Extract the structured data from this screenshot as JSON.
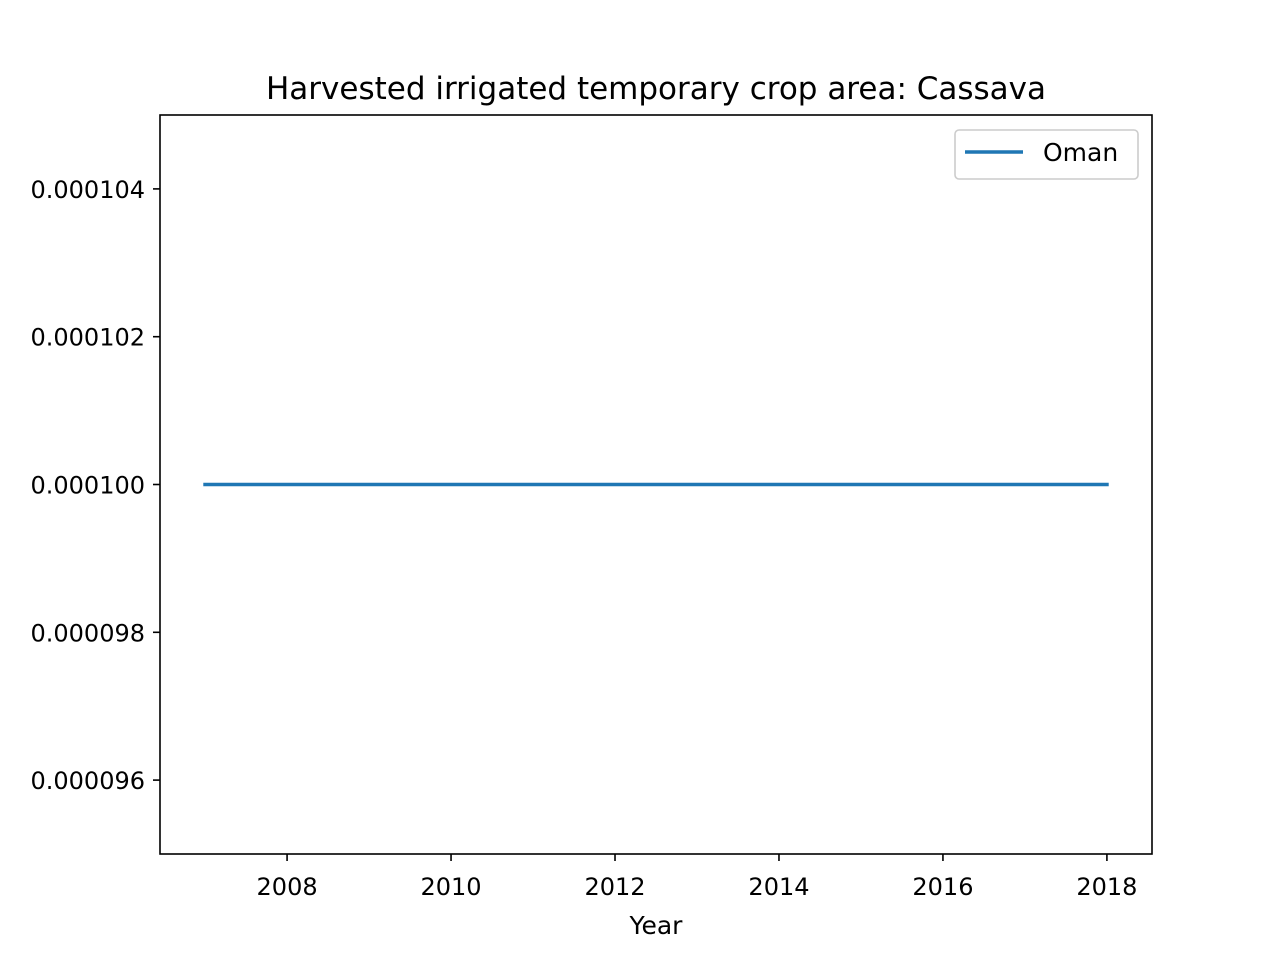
{
  "chart_data": {
    "type": "line",
    "title": "Harvested irrigated temporary crop area: Cassava",
    "xlabel": "Year",
    "ylabel": "",
    "x": [
      2007,
      2008,
      2009,
      2010,
      2011,
      2012,
      2013,
      2014,
      2015,
      2016,
      2017,
      2018
    ],
    "series": [
      {
        "name": "Oman",
        "color": "#1f77b4",
        "values": [
          0.0001,
          0.0001,
          0.0001,
          0.0001,
          0.0001,
          0.0001,
          0.0001,
          0.0001,
          0.0001,
          0.0001,
          0.0001,
          0.0001
        ]
      }
    ],
    "xlim": [
      2006.45,
      2018.55
    ],
    "ylim": [
      9.5e-05,
      0.000105
    ],
    "xticks": [
      2008,
      2010,
      2012,
      2014,
      2016,
      2018
    ],
    "xtick_labels": [
      "2008",
      "2010",
      "2012",
      "2014",
      "2016",
      "2018"
    ],
    "yticks": [
      9.6e-05,
      9.8e-05,
      0.0001,
      0.000102,
      0.000104
    ],
    "ytick_labels": [
      "0.000096",
      "0.000098",
      "0.000100",
      "0.000102",
      "0.000104"
    ],
    "grid": false,
    "legend": "top-right"
  }
}
